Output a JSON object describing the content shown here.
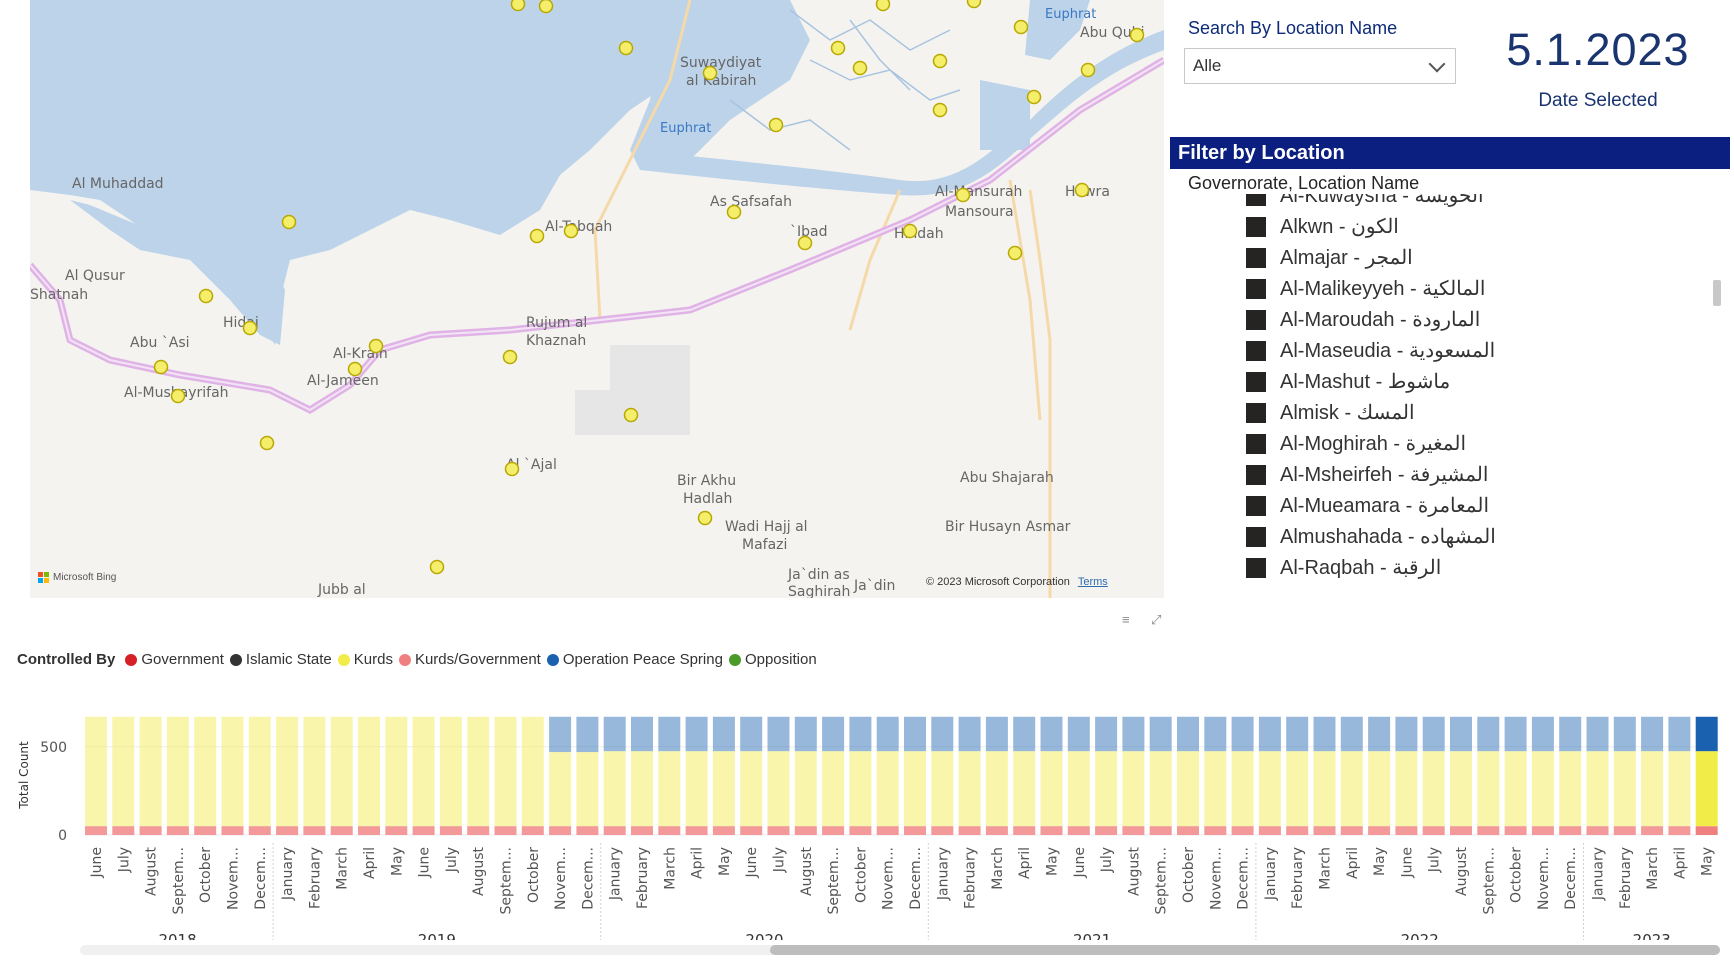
{
  "map": {
    "labels": [
      "Suwaydiyat al Kabirah",
      "Euphrat",
      "Abu Qubi",
      "Al Muhaddad",
      "Al-Tabqah",
      "As Safsafah",
      "`Ibad",
      "Al-Mansurah",
      "Mansoura",
      "Hawra",
      "Hindah",
      "Al Qusur",
      "Shatnah",
      "Hidaj",
      "Abu `Asi",
      "Al-Mushayrifah",
      "Al-Krain",
      "Al-Jameen",
      "Rujum al Khaznah",
      "Al `Ajal",
      "Bir Akhu Hadlah",
      "Wadi Hajj al Mafazi",
      "Abu Shajarah",
      "Bir Husayn Asmar",
      "Ja`din as Saghirah",
      "Ja`din",
      "Jubb al"
    ],
    "attribution": "Microsoft Bing",
    "copyright": "© 2023 Microsoft Corporation",
    "terms_label": "Terms",
    "marker_color": "#f4ee6a"
  },
  "search": {
    "title": "Search By Location Name",
    "selected": "Alle"
  },
  "date_card": {
    "value": "5.1.2023",
    "label": "Date Selected"
  },
  "filter": {
    "header": "Filter by Location",
    "subheader": "Governorate, Location Name",
    "items": [
      "Al-Kuwaysha - الخويشه",
      "Alkwn - الكون",
      "Almajar - المجر",
      "Al-Malikeyyeh - المالكية",
      "Al-Maroudah - المارودة",
      "Al-Maseudia - المسعودية",
      "Al-Mashut - ماشوط",
      "Almisk - المسك",
      "Al-Moghirah - المغيرة",
      "Al-Msheirfeh - المشيرفة",
      "Al-Mueamara - المعامرة",
      "Almushahada - المشهاده",
      "Al-Raqbah - الرقبة"
    ]
  },
  "legend": {
    "title": "Controlled By",
    "items": [
      {
        "label": "Government",
        "color": "#d61f26"
      },
      {
        "label": "Islamic State",
        "color": "#333333"
      },
      {
        "label": "Kurds",
        "color": "#f2ec48"
      },
      {
        "label": "Kurds/Government",
        "color": "#f08080"
      },
      {
        "label": "Operation Peace Spring",
        "color": "#1a62b0"
      },
      {
        "label": "Opposition",
        "color": "#4a9a2a"
      }
    ]
  },
  "chart_data": {
    "type": "bar",
    "stacked": true,
    "ylabel": "Total Count",
    "yticks": [
      0,
      500
    ],
    "ylim": [
      0,
      680
    ],
    "categories": [
      "June",
      "July",
      "August",
      "Septem...",
      "October",
      "Novem...",
      "Decem...",
      "January",
      "February",
      "March",
      "April",
      "May",
      "June",
      "July",
      "August",
      "Septem...",
      "October",
      "Novem...",
      "Decem...",
      "January",
      "February",
      "March",
      "April",
      "May",
      "June",
      "July",
      "August",
      "Septem...",
      "October",
      "Novem...",
      "Decem...",
      "January",
      "February",
      "March",
      "April",
      "May",
      "June",
      "July",
      "August",
      "Septem...",
      "October",
      "Novem...",
      "Decem...",
      "January",
      "February",
      "March",
      "April",
      "May",
      "June",
      "July",
      "August",
      "Septem...",
      "October",
      "Novem...",
      "Decem...",
      "January",
      "February",
      "March",
      "April",
      "May"
    ],
    "years": [
      {
        "label": "2018",
        "start": 0,
        "count": 7
      },
      {
        "label": "2019",
        "start": 7,
        "count": 12
      },
      {
        "label": "2020",
        "start": 19,
        "count": 12
      },
      {
        "label": "2021",
        "start": 31,
        "count": 12
      },
      {
        "label": "2022",
        "start": 43,
        "count": 12
      },
      {
        "label": "2023",
        "start": 55,
        "count": 5
      }
    ],
    "series": [
      {
        "name": "Kurds/Government",
        "color": "#f08080",
        "values": [
          50,
          50,
          50,
          50,
          50,
          50,
          50,
          50,
          50,
          50,
          50,
          50,
          50,
          50,
          50,
          50,
          50,
          50,
          50,
          50,
          50,
          50,
          50,
          50,
          50,
          50,
          50,
          50,
          50,
          50,
          50,
          50,
          50,
          50,
          50,
          50,
          50,
          50,
          50,
          50,
          50,
          50,
          50,
          50,
          50,
          50,
          50,
          50,
          50,
          50,
          50,
          50,
          50,
          50,
          50,
          50,
          50,
          50,
          50,
          50
        ]
      },
      {
        "name": "Kurds",
        "color": "#f2ec48",
        "values": [
          620,
          620,
          620,
          620,
          620,
          620,
          620,
          620,
          620,
          620,
          620,
          620,
          620,
          620,
          620,
          620,
          620,
          420,
          420,
          425,
          425,
          425,
          425,
          425,
          425,
          425,
          425,
          425,
          425,
          425,
          425,
          425,
          425,
          425,
          425,
          425,
          425,
          425,
          425,
          425,
          425,
          425,
          425,
          425,
          425,
          425,
          425,
          425,
          425,
          425,
          425,
          425,
          425,
          425,
          425,
          425,
          425,
          425,
          425,
          425
        ]
      },
      {
        "name": "Operation Peace Spring",
        "color": "#1a62b0",
        "values": [
          0,
          0,
          0,
          0,
          0,
          0,
          0,
          0,
          0,
          0,
          0,
          0,
          0,
          0,
          0,
          0,
          0,
          200,
          200,
          195,
          195,
          195,
          195,
          195,
          195,
          195,
          195,
          195,
          195,
          195,
          195,
          195,
          195,
          195,
          195,
          195,
          195,
          195,
          195,
          195,
          195,
          195,
          195,
          195,
          195,
          195,
          195,
          195,
          195,
          195,
          195,
          195,
          195,
          195,
          195,
          195,
          195,
          195,
          195,
          195
        ]
      }
    ],
    "highlighted_index": 59
  }
}
